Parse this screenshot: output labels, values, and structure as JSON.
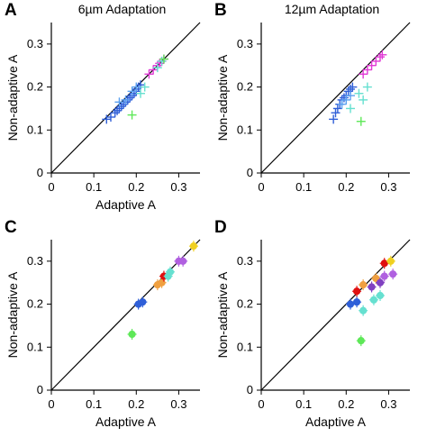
{
  "figure": {
    "colors": {
      "blue": "#2f5fd8",
      "lightblue": "#5aa0f0",
      "magenta": "#e23ad6",
      "pink": "#ff7ad6",
      "cyan": "#66e0d0",
      "green": "#5ee858",
      "darkgreen": "#2f9a2f",
      "red": "#e01010",
      "orange": "#f0a040",
      "yellow": "#f0d020",
      "purple": "#b060e0",
      "violet": "#8040c0",
      "black": "#000000"
    }
  },
  "chart_data": [
    {
      "type": "scatter",
      "panel": "A",
      "title": "6µm Adaptation",
      "xlabel": "Adaptive A",
      "ylabel": "Non-adaptive A",
      "xlim": [
        0,
        0.35
      ],
      "ylim": [
        0,
        0.35
      ],
      "xticks": [
        "0",
        "0.1",
        "0.2",
        "0.3"
      ],
      "yticks": [
        "0",
        "0.1",
        "0.2",
        "0.3"
      ],
      "identity_line": true,
      "marker": "cross",
      "series": [
        {
          "color": "blue",
          "points": [
            [
              0.13,
              0.125
            ],
            [
              0.14,
              0.13
            ],
            [
              0.15,
              0.14
            ],
            [
              0.155,
              0.145
            ],
            [
              0.16,
              0.15
            ],
            [
              0.165,
              0.155
            ],
            [
              0.17,
              0.16
            ],
            [
              0.175,
              0.165
            ],
            [
              0.18,
              0.17
            ],
            [
              0.185,
              0.175
            ],
            [
              0.19,
              0.18
            ],
            [
              0.195,
              0.185
            ],
            [
              0.2,
              0.19
            ],
            [
              0.2,
              0.195
            ],
            [
              0.205,
              0.2
            ],
            [
              0.21,
              0.205
            ]
          ]
        },
        {
          "color": "lightblue",
          "points": [
            [
              0.16,
              0.165
            ],
            [
              0.175,
              0.17
            ],
            [
              0.19,
              0.19
            ],
            [
              0.2,
              0.2
            ]
          ]
        },
        {
          "color": "magenta",
          "points": [
            [
              0.23,
              0.23
            ],
            [
              0.24,
              0.24
            ],
            [
              0.25,
              0.25
            ],
            [
              0.255,
              0.255
            ],
            [
              0.26,
              0.26
            ],
            [
              0.265,
              0.265
            ]
          ]
        },
        {
          "color": "cyan",
          "points": [
            [
              0.21,
              0.185
            ],
            [
              0.22,
              0.2
            ],
            [
              0.25,
              0.245
            ],
            [
              0.26,
              0.26
            ]
          ]
        },
        {
          "color": "green",
          "points": [
            [
              0.19,
              0.135
            ],
            [
              0.265,
              0.265
            ]
          ]
        }
      ]
    },
    {
      "type": "scatter",
      "panel": "B",
      "title": "12µm Adaptation",
      "xlabel": "",
      "ylabel": "Non-adaptive A",
      "xlim": [
        0,
        0.35
      ],
      "ylim": [
        0,
        0.35
      ],
      "xticks": [
        "0",
        "0.1",
        "0.2",
        "0.3"
      ],
      "yticks": [
        "0",
        "0.1",
        "0.2",
        "0.3"
      ],
      "identity_line": true,
      "marker": "cross",
      "series": [
        {
          "color": "blue",
          "points": [
            [
              0.17,
              0.125
            ],
            [
              0.175,
              0.14
            ],
            [
              0.18,
              0.15
            ],
            [
              0.185,
              0.16
            ],
            [
              0.19,
              0.17
            ],
            [
              0.195,
              0.175
            ],
            [
              0.2,
              0.18
            ],
            [
              0.205,
              0.19
            ],
            [
              0.21,
              0.195
            ],
            [
              0.215,
              0.2
            ]
          ]
        },
        {
          "color": "lightblue",
          "points": [
            [
              0.19,
              0.16
            ],
            [
              0.2,
              0.17
            ],
            [
              0.21,
              0.18
            ]
          ]
        },
        {
          "color": "magenta",
          "points": [
            [
              0.24,
              0.23
            ],
            [
              0.25,
              0.24
            ],
            [
              0.26,
              0.25
            ],
            [
              0.27,
              0.26
            ],
            [
              0.28,
              0.27
            ],
            [
              0.285,
              0.275
            ]
          ]
        },
        {
          "color": "cyan",
          "points": [
            [
              0.21,
              0.15
            ],
            [
              0.24,
              0.17
            ],
            [
              0.23,
              0.185
            ],
            [
              0.25,
              0.2
            ]
          ]
        },
        {
          "color": "green",
          "points": [
            [
              0.235,
              0.12
            ]
          ]
        }
      ]
    },
    {
      "type": "scatter",
      "panel": "C",
      "title": "",
      "xlabel": "Adaptive A",
      "ylabel": "Non-adaptive A",
      "xlim": [
        0,
        0.35
      ],
      "ylim": [
        0,
        0.35
      ],
      "xticks": [
        "0",
        "0.1",
        "0.2",
        "0.3"
      ],
      "yticks": [
        "0",
        "0.1",
        "0.2",
        "0.3"
      ],
      "identity_line": true,
      "marker": "circle",
      "series": [
        {
          "color": "green",
          "points": [
            [
              0.19,
              0.13
            ]
          ]
        },
        {
          "color": "blue",
          "points": [
            [
              0.205,
              0.2
            ],
            [
              0.215,
              0.205
            ]
          ]
        },
        {
          "color": "orange",
          "points": [
            [
              0.25,
              0.245
            ],
            [
              0.26,
              0.25
            ]
          ]
        },
        {
          "color": "red",
          "points": [
            [
              0.265,
              0.265
            ]
          ]
        },
        {
          "color": "cyan",
          "points": [
            [
              0.275,
              0.265
            ],
            [
              0.28,
              0.275
            ]
          ]
        },
        {
          "color": "purple",
          "points": [
            [
              0.3,
              0.3
            ],
            [
              0.31,
              0.3
            ]
          ]
        },
        {
          "color": "yellow",
          "points": [
            [
              0.335,
              0.335
            ]
          ]
        }
      ]
    },
    {
      "type": "scatter",
      "panel": "D",
      "title": "",
      "xlabel": "Adaptive A",
      "ylabel": "Non-adaptive A",
      "xlim": [
        0,
        0.35
      ],
      "ylim": [
        0,
        0.35
      ],
      "xticks": [
        "0",
        "0.1",
        "0.2",
        "0.3"
      ],
      "yticks": [
        "0",
        "0.1",
        "0.2",
        "0.3"
      ],
      "identity_line": true,
      "marker": "circle",
      "series": [
        {
          "color": "green",
          "points": [
            [
              0.235,
              0.115
            ]
          ]
        },
        {
          "color": "blue",
          "points": [
            [
              0.21,
              0.2
            ],
            [
              0.225,
              0.205
            ]
          ]
        },
        {
          "color": "cyan",
          "points": [
            [
              0.24,
              0.185
            ],
            [
              0.265,
              0.21
            ],
            [
              0.28,
              0.22
            ]
          ]
        },
        {
          "color": "red",
          "points": [
            [
              0.225,
              0.23
            ]
          ]
        },
        {
          "color": "orange",
          "points": [
            [
              0.24,
              0.245
            ],
            [
              0.27,
              0.26
            ]
          ]
        },
        {
          "color": "purple",
          "points": [
            [
              0.29,
              0.265
            ],
            [
              0.31,
              0.27
            ]
          ]
        },
        {
          "color": "violet",
          "points": [
            [
              0.26,
              0.24
            ],
            [
              0.28,
              0.25
            ]
          ]
        },
        {
          "color": "red",
          "points": [
            [
              0.29,
              0.295
            ]
          ]
        },
        {
          "color": "yellow",
          "points": [
            [
              0.305,
              0.3
            ]
          ]
        }
      ]
    }
  ]
}
